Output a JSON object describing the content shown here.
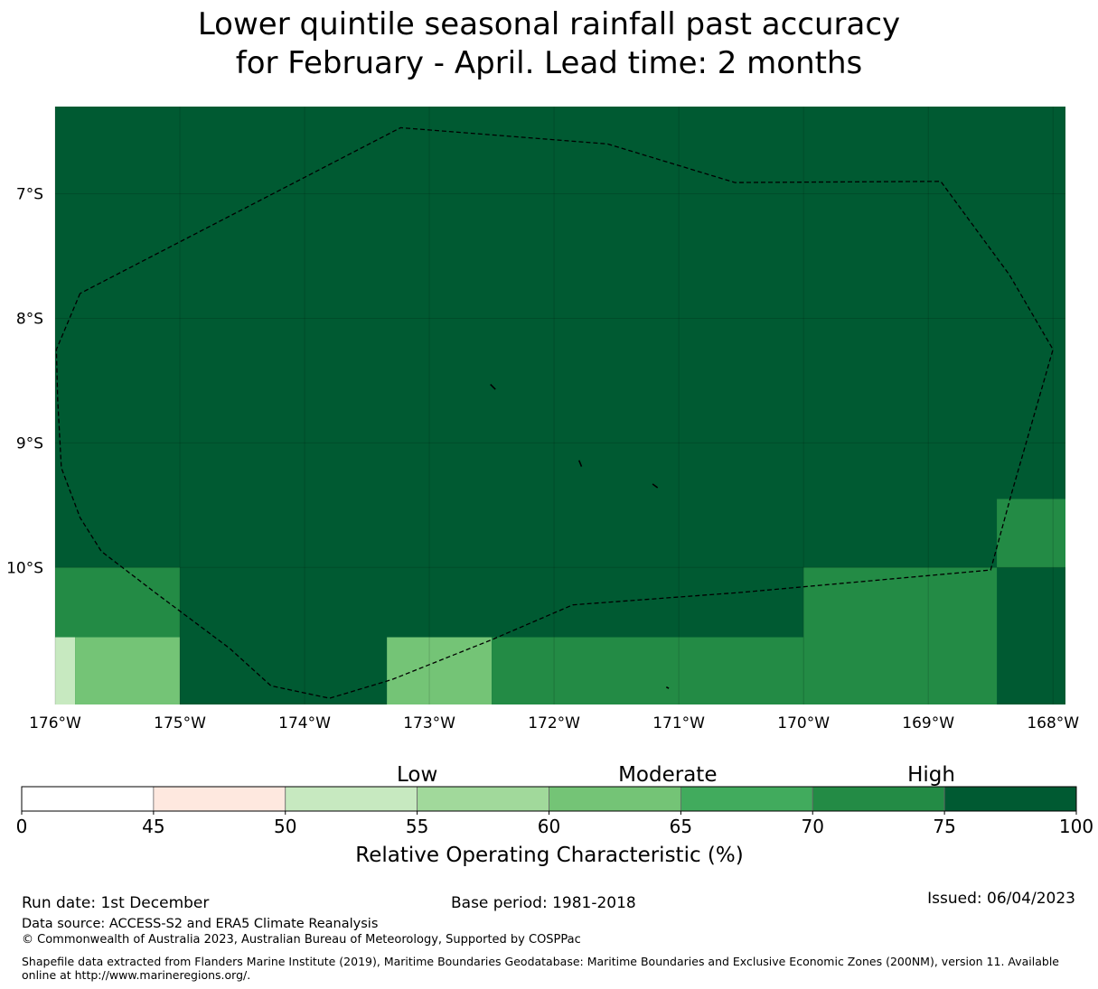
{
  "title": {
    "line1": "Lower quintile seasonal rainfall past accuracy",
    "line2": "for February - April. Lead time: 2 months"
  },
  "map": {
    "lon_range": [
      -176,
      -167.9
    ],
    "lat_range": [
      -6.3,
      -11.1
    ],
    "x_ticks": [
      {
        "lon": -176,
        "label": "176°W"
      },
      {
        "lon": -175,
        "label": "175°W"
      },
      {
        "lon": -174,
        "label": "174°W"
      },
      {
        "lon": -173,
        "label": "173°W"
      },
      {
        "lon": -172,
        "label": "172°W"
      },
      {
        "lon": -171,
        "label": "171°W"
      },
      {
        "lon": -170,
        "label": "170°W"
      },
      {
        "lon": -169,
        "label": "169°W"
      },
      {
        "lon": -168,
        "label": "168°W"
      }
    ],
    "y_ticks": [
      {
        "lat": -7,
        "label": "7°S"
      },
      {
        "lat": -8,
        "label": "8°S"
      },
      {
        "lat": -9,
        "label": "9°S"
      },
      {
        "lat": -10,
        "label": "10°S"
      }
    ],
    "background_color": "#005a32",
    "cells": [
      {
        "lon0": -168.45,
        "lon1": -167.9,
        "lat0": -9.45,
        "lat1": -10.0,
        "color": "#238b45"
      },
      {
        "lon0": -176.0,
        "lon1": -175.0,
        "lat0": -10.0,
        "lat1": -10.56,
        "color": "#238b45"
      },
      {
        "lon0": -170.0,
        "lon1": -168.45,
        "lat0": -10.0,
        "lat1": -11.1,
        "color": "#238b45"
      },
      {
        "lon0": -176.0,
        "lon1": -175.84,
        "lat0": -10.56,
        "lat1": -11.1,
        "color": "#c7e9c0"
      },
      {
        "lon0": -175.84,
        "lon1": -175.0,
        "lat0": -10.56,
        "lat1": -11.1,
        "color": "#74c476"
      },
      {
        "lon0": -173.34,
        "lon1": -172.5,
        "lat0": -10.56,
        "lat1": -11.1,
        "color": "#74c476"
      },
      {
        "lon0": -172.5,
        "lon1": -170.0,
        "lat0": -10.56,
        "lat1": -11.1,
        "color": "#238b45"
      }
    ],
    "eez_boundary": [
      [
        -175.8,
        -7.8
      ],
      [
        -175.99,
        -8.25
      ],
      [
        -175.98,
        -8.65
      ],
      [
        -175.95,
        -9.2
      ],
      [
        -175.8,
        -9.6
      ],
      [
        -175.63,
        -9.87
      ],
      [
        -175.2,
        -10.2
      ],
      [
        -174.6,
        -10.65
      ],
      [
        -174.27,
        -10.95
      ],
      [
        -173.8,
        -11.05
      ],
      [
        -173.3,
        -10.9
      ],
      [
        -172.5,
        -10.58
      ],
      [
        -171.85,
        -10.3
      ],
      [
        -170.5,
        -10.2
      ],
      [
        -168.5,
        -10.02
      ],
      [
        -168.33,
        -9.4
      ],
      [
        -168.0,
        -8.25
      ],
      [
        -168.35,
        -7.65
      ],
      [
        -168.9,
        -6.9
      ],
      [
        -170.55,
        -6.91
      ],
      [
        -171.57,
        -6.6
      ],
      [
        -173.23,
        -6.47
      ],
      [
        -175.8,
        -7.8
      ]
    ],
    "islands": [
      [
        [
          -172.51,
          -8.53
        ],
        [
          -172.47,
          -8.57
        ]
      ],
      [
        [
          -171.8,
          -9.14
        ],
        [
          -171.78,
          -9.19
        ]
      ],
      [
        [
          -171.21,
          -9.33
        ],
        [
          -171.17,
          -9.36
        ]
      ],
      [
        [
          -171.1,
          -10.96
        ],
        [
          -171.08,
          -10.97
        ]
      ]
    ]
  },
  "colorbar": {
    "ticks": [
      "0",
      "45",
      "50",
      "55",
      "60",
      "65",
      "70",
      "75",
      "100"
    ],
    "colors": [
      "#ffffff",
      "#fee8df",
      "#c7e9c0",
      "#a1d99b",
      "#74c476",
      "#41ab5d",
      "#238b45",
      "#005a32"
    ],
    "category_labels": [
      "Low",
      "Moderate",
      "High"
    ],
    "label": "Relative Operating Characteristic (%)"
  },
  "footer": {
    "run_date": "Run date: 1st December",
    "base_period": "Base period: 1981-2018",
    "issued": "Issued: 06/04/2023",
    "data_source": "Data source: ACCESS-S2 and ERA5 Climate Reanalysis",
    "copyright": "© Commonwealth of Australia 2023, Australian Bureau of Meteorology, Supported by COSPPac",
    "shapefile": "Shapefile data extracted from Flanders Marine Institute (2019), Maritime Boundaries Geodatabase: Maritime Boundaries and Exclusive Economic Zones (200NM), version 11. Available online at http://www.marineregions.org/."
  }
}
